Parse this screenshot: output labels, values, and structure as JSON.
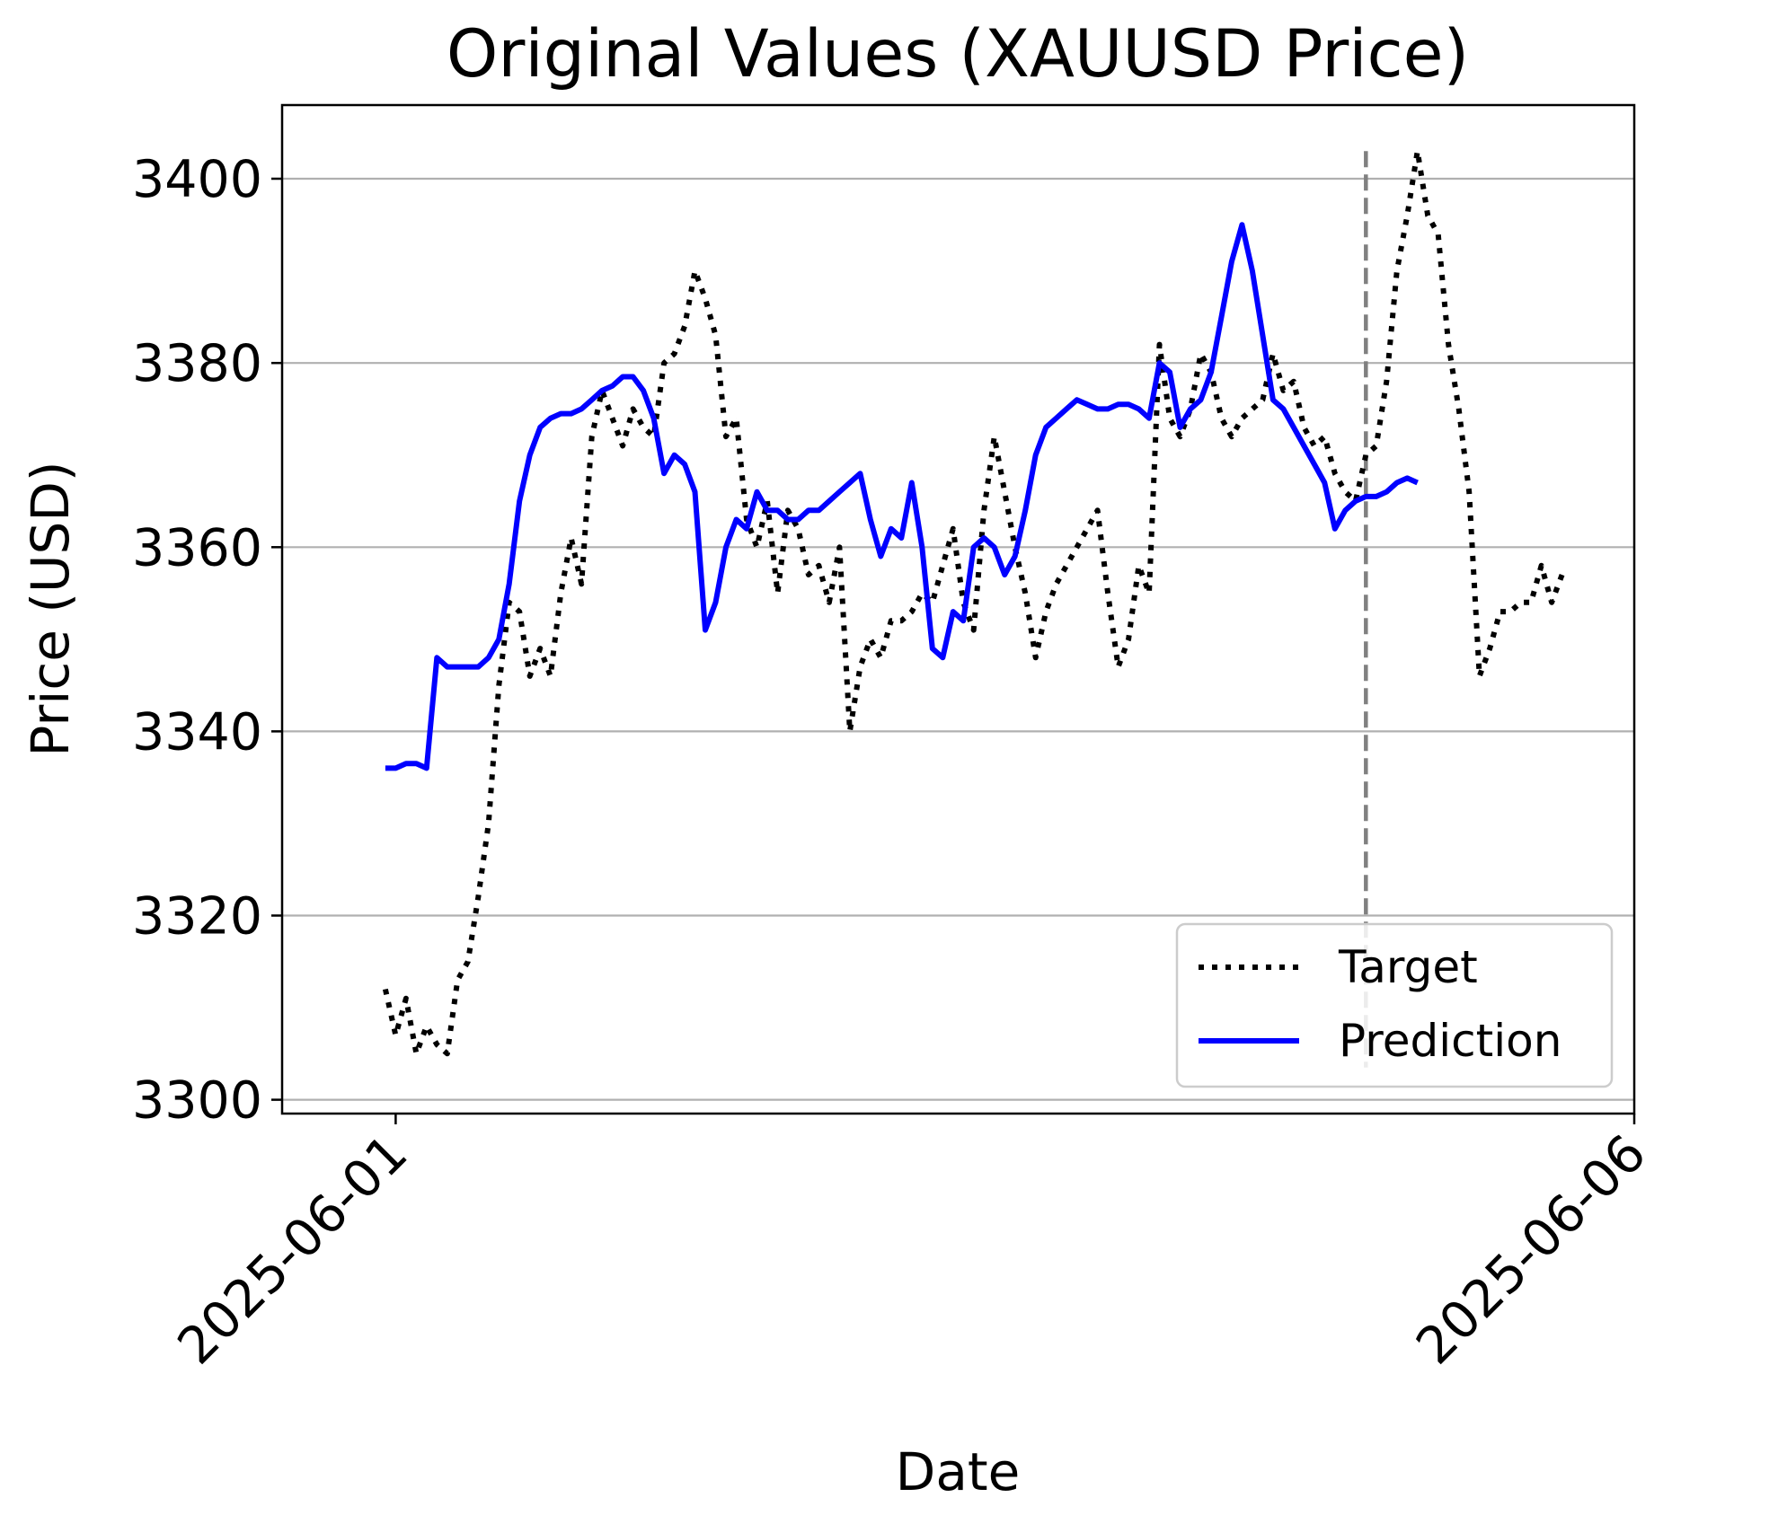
{
  "chart_data": {
    "type": "line",
    "title": "Original Values (XAUUSD Price)",
    "xlabel": "Date",
    "ylabel": "Price (USD)",
    "x_ticks": [
      "2025-06-01",
      "2025-06-06"
    ],
    "y_ticks": [
      3300,
      3320,
      3340,
      3360,
      3380,
      3400
    ],
    "xlim": [
      "2025-05-31 13:00",
      "2025-06-06 00:00"
    ],
    "ylim": [
      3298.5,
      3408
    ],
    "grid": "horizontal",
    "legend_position": "lower-right",
    "x_tick_label_rotation": 45,
    "vline": {
      "x": "2025-06-04 22:00",
      "style": "dashed",
      "color": "#808080"
    },
    "series": [
      {
        "name": "Target",
        "style": "dotted",
        "color": "#000000",
        "points": [
          [
            "2025-05-31 23:00",
            3312
          ],
          [
            "2025-06-01 00:00",
            3307
          ],
          [
            "2025-06-01 01:00",
            3311
          ],
          [
            "2025-06-01 02:00",
            3305
          ],
          [
            "2025-06-01 03:00",
            3308
          ],
          [
            "2025-06-01 04:00",
            3306
          ],
          [
            "2025-06-01 05:00",
            3305
          ],
          [
            "2025-06-01 06:00",
            3313
          ],
          [
            "2025-06-01 07:00",
            3315
          ],
          [
            "2025-06-01 08:00",
            3322
          ],
          [
            "2025-06-01 09:00",
            3330
          ],
          [
            "2025-06-01 10:00",
            3345
          ],
          [
            "2025-06-01 11:00",
            3354
          ],
          [
            "2025-06-01 12:00",
            3353
          ],
          [
            "2025-06-01 13:00",
            3346
          ],
          [
            "2025-06-01 14:00",
            3349
          ],
          [
            "2025-06-01 15:00",
            3346
          ],
          [
            "2025-06-01 16:00",
            3355
          ],
          [
            "2025-06-01 17:00",
            3361
          ],
          [
            "2025-06-01 18:00",
            3356
          ],
          [
            "2025-06-01 19:00",
            3372
          ],
          [
            "2025-06-01 20:00",
            3377
          ],
          [
            "2025-06-01 21:00",
            3374
          ],
          [
            "2025-06-01 22:00",
            3371
          ],
          [
            "2025-06-01 23:00",
            3375
          ],
          [
            "2025-06-02 00:00",
            3373
          ],
          [
            "2025-06-02 01:00",
            3372
          ],
          [
            "2025-06-02 02:00",
            3380
          ],
          [
            "2025-06-02 03:00",
            3381
          ],
          [
            "2025-06-02 04:00",
            3384
          ],
          [
            "2025-06-02 05:00",
            3390
          ],
          [
            "2025-06-02 06:00",
            3387
          ],
          [
            "2025-06-02 07:00",
            3383
          ],
          [
            "2025-06-02 08:00",
            3372
          ],
          [
            "2025-06-02 09:00",
            3374
          ],
          [
            "2025-06-02 10:00",
            3363
          ],
          [
            "2025-06-02 11:00",
            3360
          ],
          [
            "2025-06-02 12:00",
            3365
          ],
          [
            "2025-06-02 13:00",
            3355
          ],
          [
            "2025-06-02 14:00",
            3364
          ],
          [
            "2025-06-02 15:00",
            3362
          ],
          [
            "2025-06-02 16:00",
            3357
          ],
          [
            "2025-06-02 17:00",
            3358
          ],
          [
            "2025-06-02 18:00",
            3354
          ],
          [
            "2025-06-02 19:00",
            3360
          ],
          [
            "2025-06-02 20:00",
            3340
          ],
          [
            "2025-06-02 21:00",
            3347
          ],
          [
            "2025-06-02 22:00",
            3350
          ],
          [
            "2025-06-02 23:00",
            3348
          ],
          [
            "2025-06-03 00:00",
            3352
          ],
          [
            "2025-06-03 01:00",
            3352
          ],
          [
            "2025-06-03 02:00",
            3353
          ],
          [
            "2025-06-03 03:00",
            3355
          ],
          [
            "2025-06-03 04:00",
            3354
          ],
          [
            "2025-06-03 05:00",
            3358
          ],
          [
            "2025-06-03 06:00",
            3362
          ],
          [
            "2025-06-03 07:00",
            3354
          ],
          [
            "2025-06-03 08:00",
            3351
          ],
          [
            "2025-06-03 09:00",
            3364
          ],
          [
            "2025-06-03 10:00",
            3372
          ],
          [
            "2025-06-03 11:00",
            3366
          ],
          [
            "2025-06-03 12:00",
            3360
          ],
          [
            "2025-06-03 13:00",
            3355
          ],
          [
            "2025-06-03 14:00",
            3348
          ],
          [
            "2025-06-03 15:00",
            3353
          ],
          [
            "2025-06-03 16:00",
            3356
          ],
          [
            "2025-06-03 17:00",
            3358
          ],
          [
            "2025-06-03 18:00",
            3360
          ],
          [
            "2025-06-03 19:00",
            3362
          ],
          [
            "2025-06-03 20:00",
            3364
          ],
          [
            "2025-06-03 21:00",
            3355
          ],
          [
            "2025-06-03 22:00",
            3347
          ],
          [
            "2025-06-03 23:00",
            3350
          ],
          [
            "2025-06-04 00:00",
            3358
          ],
          [
            "2025-06-04 01:00",
            3355
          ],
          [
            "2025-06-04 02:00",
            3382
          ],
          [
            "2025-06-04 03:00",
            3374
          ],
          [
            "2025-06-04 04:00",
            3372
          ],
          [
            "2025-06-04 05:00",
            3375
          ],
          [
            "2025-06-04 06:00",
            3381
          ],
          [
            "2025-06-04 07:00",
            3379
          ],
          [
            "2025-06-04 08:00",
            3374
          ],
          [
            "2025-06-04 09:00",
            3372
          ],
          [
            "2025-06-04 10:00",
            3374
          ],
          [
            "2025-06-04 11:00",
            3375
          ],
          [
            "2025-06-04 12:00",
            3376
          ],
          [
            "2025-06-04 13:00",
            3381
          ],
          [
            "2025-06-04 14:00",
            3377
          ],
          [
            "2025-06-04 15:00",
            3378
          ],
          [
            "2025-06-04 16:00",
            3373
          ],
          [
            "2025-06-04 17:00",
            3371
          ],
          [
            "2025-06-04 18:00",
            3372
          ],
          [
            "2025-06-04 19:00",
            3368
          ],
          [
            "2025-06-04 20:00",
            3366
          ],
          [
            "2025-06-04 21:00",
            3365
          ],
          [
            "2025-06-04 22:00",
            3370
          ],
          [
            "2025-06-04 23:00",
            3371
          ],
          [
            "2025-06-05 00:00",
            3378
          ],
          [
            "2025-06-05 01:00",
            3390
          ],
          [
            "2025-06-05 02:00",
            3396
          ],
          [
            "2025-06-05 03:00",
            3403
          ],
          [
            "2025-06-05 04:00",
            3396
          ],
          [
            "2025-06-05 05:00",
            3394
          ],
          [
            "2025-06-05 06:00",
            3382
          ],
          [
            "2025-06-05 07:00",
            3375
          ],
          [
            "2025-06-05 08:00",
            3366
          ],
          [
            "2025-06-05 09:00",
            3346
          ],
          [
            "2025-06-05 10:00",
            3349
          ],
          [
            "2025-06-05 11:00",
            3353
          ],
          [
            "2025-06-05 12:00",
            3353
          ],
          [
            "2025-06-05 13:00",
            3354
          ],
          [
            "2025-06-05 14:00",
            3354
          ],
          [
            "2025-06-05 15:00",
            3358
          ],
          [
            "2025-06-05 16:00",
            3354
          ],
          [
            "2025-06-05 17:00",
            3357
          ]
        ]
      },
      {
        "name": "Prediction",
        "style": "solid",
        "color": "#0000ff",
        "points": [
          [
            "2025-05-31 23:00",
            3336
          ],
          [
            "2025-06-01 00:00",
            3336
          ],
          [
            "2025-06-01 01:00",
            3336.5
          ],
          [
            "2025-06-01 02:00",
            3336.5
          ],
          [
            "2025-06-01 03:00",
            3336
          ],
          [
            "2025-06-01 04:00",
            3348
          ],
          [
            "2025-06-01 05:00",
            3347
          ],
          [
            "2025-06-01 06:00",
            3347
          ],
          [
            "2025-06-01 07:00",
            3347
          ],
          [
            "2025-06-01 08:00",
            3347
          ],
          [
            "2025-06-01 09:00",
            3348
          ],
          [
            "2025-06-01 10:00",
            3350
          ],
          [
            "2025-06-01 11:00",
            3356
          ],
          [
            "2025-06-01 12:00",
            3365
          ],
          [
            "2025-06-01 13:00",
            3370
          ],
          [
            "2025-06-01 14:00",
            3373
          ],
          [
            "2025-06-01 15:00",
            3374
          ],
          [
            "2025-06-01 16:00",
            3374.5
          ],
          [
            "2025-06-01 17:00",
            3374.5
          ],
          [
            "2025-06-01 18:00",
            3375
          ],
          [
            "2025-06-01 19:00",
            3376
          ],
          [
            "2025-06-01 20:00",
            3377
          ],
          [
            "2025-06-01 21:00",
            3377.5
          ],
          [
            "2025-06-01 22:00",
            3378.5
          ],
          [
            "2025-06-01 23:00",
            3378.5
          ],
          [
            "2025-06-02 00:00",
            3377
          ],
          [
            "2025-06-02 01:00",
            3374
          ],
          [
            "2025-06-02 02:00",
            3368
          ],
          [
            "2025-06-02 03:00",
            3370
          ],
          [
            "2025-06-02 04:00",
            3369
          ],
          [
            "2025-06-02 05:00",
            3366
          ],
          [
            "2025-06-02 06:00",
            3351
          ],
          [
            "2025-06-02 07:00",
            3354
          ],
          [
            "2025-06-02 08:00",
            3360
          ],
          [
            "2025-06-02 09:00",
            3363
          ],
          [
            "2025-06-02 10:00",
            3362
          ],
          [
            "2025-06-02 11:00",
            3366
          ],
          [
            "2025-06-02 12:00",
            3364
          ],
          [
            "2025-06-02 13:00",
            3364
          ],
          [
            "2025-06-02 14:00",
            3363
          ],
          [
            "2025-06-02 15:00",
            3363
          ],
          [
            "2025-06-02 16:00",
            3364
          ],
          [
            "2025-06-02 17:00",
            3364
          ],
          [
            "2025-06-02 18:00",
            3365
          ],
          [
            "2025-06-02 19:00",
            3366
          ],
          [
            "2025-06-02 20:00",
            3367
          ],
          [
            "2025-06-02 21:00",
            3368
          ],
          [
            "2025-06-02 22:00",
            3363
          ],
          [
            "2025-06-02 23:00",
            3359
          ],
          [
            "2025-06-03 00:00",
            3362
          ],
          [
            "2025-06-03 01:00",
            3361
          ],
          [
            "2025-06-03 02:00",
            3367
          ],
          [
            "2025-06-03 03:00",
            3360
          ],
          [
            "2025-06-03 04:00",
            3349
          ],
          [
            "2025-06-03 05:00",
            3348
          ],
          [
            "2025-06-03 06:00",
            3353
          ],
          [
            "2025-06-03 07:00",
            3352
          ],
          [
            "2025-06-03 08:00",
            3360
          ],
          [
            "2025-06-03 09:00",
            3361
          ],
          [
            "2025-06-03 10:00",
            3360
          ],
          [
            "2025-06-03 11:00",
            3357
          ],
          [
            "2025-06-03 12:00",
            3359
          ],
          [
            "2025-06-03 13:00",
            3364
          ],
          [
            "2025-06-03 14:00",
            3370
          ],
          [
            "2025-06-03 15:00",
            3373
          ],
          [
            "2025-06-03 16:00",
            3374
          ],
          [
            "2025-06-03 17:00",
            3375
          ],
          [
            "2025-06-03 18:00",
            3376
          ],
          [
            "2025-06-03 19:00",
            3375.5
          ],
          [
            "2025-06-03 20:00",
            3375
          ],
          [
            "2025-06-03 21:00",
            3375
          ],
          [
            "2025-06-03 22:00",
            3375.5
          ],
          [
            "2025-06-03 23:00",
            3375.5
          ],
          [
            "2025-06-04 00:00",
            3375
          ],
          [
            "2025-06-04 01:00",
            3374
          ],
          [
            "2025-06-04 02:00",
            3380
          ],
          [
            "2025-06-04 03:00",
            3379
          ],
          [
            "2025-06-04 04:00",
            3373
          ],
          [
            "2025-06-04 05:00",
            3375
          ],
          [
            "2025-06-04 06:00",
            3376
          ],
          [
            "2025-06-04 07:00",
            3379
          ],
          [
            "2025-06-04 08:00",
            3385
          ],
          [
            "2025-06-04 09:00",
            3391
          ],
          [
            "2025-06-04 10:00",
            3395
          ],
          [
            "2025-06-04 11:00",
            3390
          ],
          [
            "2025-06-04 12:00",
            3383
          ],
          [
            "2025-06-04 13:00",
            3376
          ],
          [
            "2025-06-04 14:00",
            3375
          ],
          [
            "2025-06-04 15:00",
            3373
          ],
          [
            "2025-06-04 16:00",
            3371
          ],
          [
            "2025-06-04 17:00",
            3369
          ],
          [
            "2025-06-04 18:00",
            3367
          ],
          [
            "2025-06-04 19:00",
            3362
          ],
          [
            "2025-06-04 20:00",
            3364
          ],
          [
            "2025-06-04 21:00",
            3365
          ],
          [
            "2025-06-04 22:00",
            3365.5
          ],
          [
            "2025-06-04 23:00",
            3365.5
          ],
          [
            "2025-06-05 00:00",
            3366
          ],
          [
            "2025-06-05 01:00",
            3367
          ],
          [
            "2025-06-05 02:00",
            3367.5
          ],
          [
            "2025-06-05 03:00",
            3367
          ]
        ]
      }
    ]
  }
}
